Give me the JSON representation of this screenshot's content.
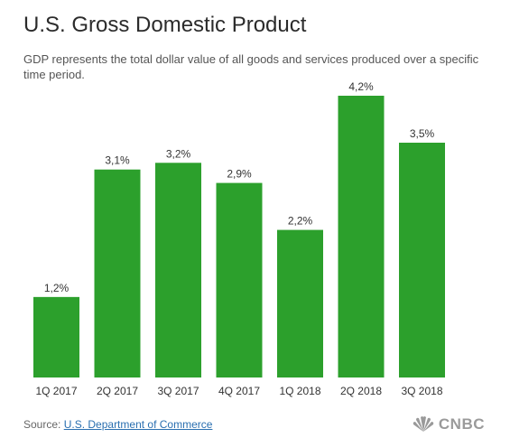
{
  "header": {
    "title": "U.S. Gross Domestic Product",
    "subtitle": "GDP represents the total dollar value of all goods and services produced over a specific time period."
  },
  "chart_data": {
    "type": "bar",
    "title": "U.S. Gross Domestic Product",
    "categories": [
      "1Q 2017",
      "2Q 2017",
      "3Q 2017",
      "4Q 2017",
      "1Q 2018",
      "2Q 2018",
      "3Q 2018"
    ],
    "values": [
      1.2,
      3.1,
      3.2,
      2.9,
      2.2,
      4.2,
      3.5
    ],
    "data_labels": [
      "1,2%",
      "3,1%",
      "3,2%",
      "2,9%",
      "2,2%",
      "4,2%",
      "3,5%"
    ],
    "xlabel": "",
    "ylabel": "",
    "ylim": [
      0,
      4.2
    ],
    "grid": false,
    "legend": "none",
    "bar_color": "#2ca02c"
  },
  "footer": {
    "source_prefix": "Source:",
    "source_link": "U.S. Department of Commerce",
    "logo_text": "CNBC",
    "logo_icon": "peacock-icon"
  }
}
